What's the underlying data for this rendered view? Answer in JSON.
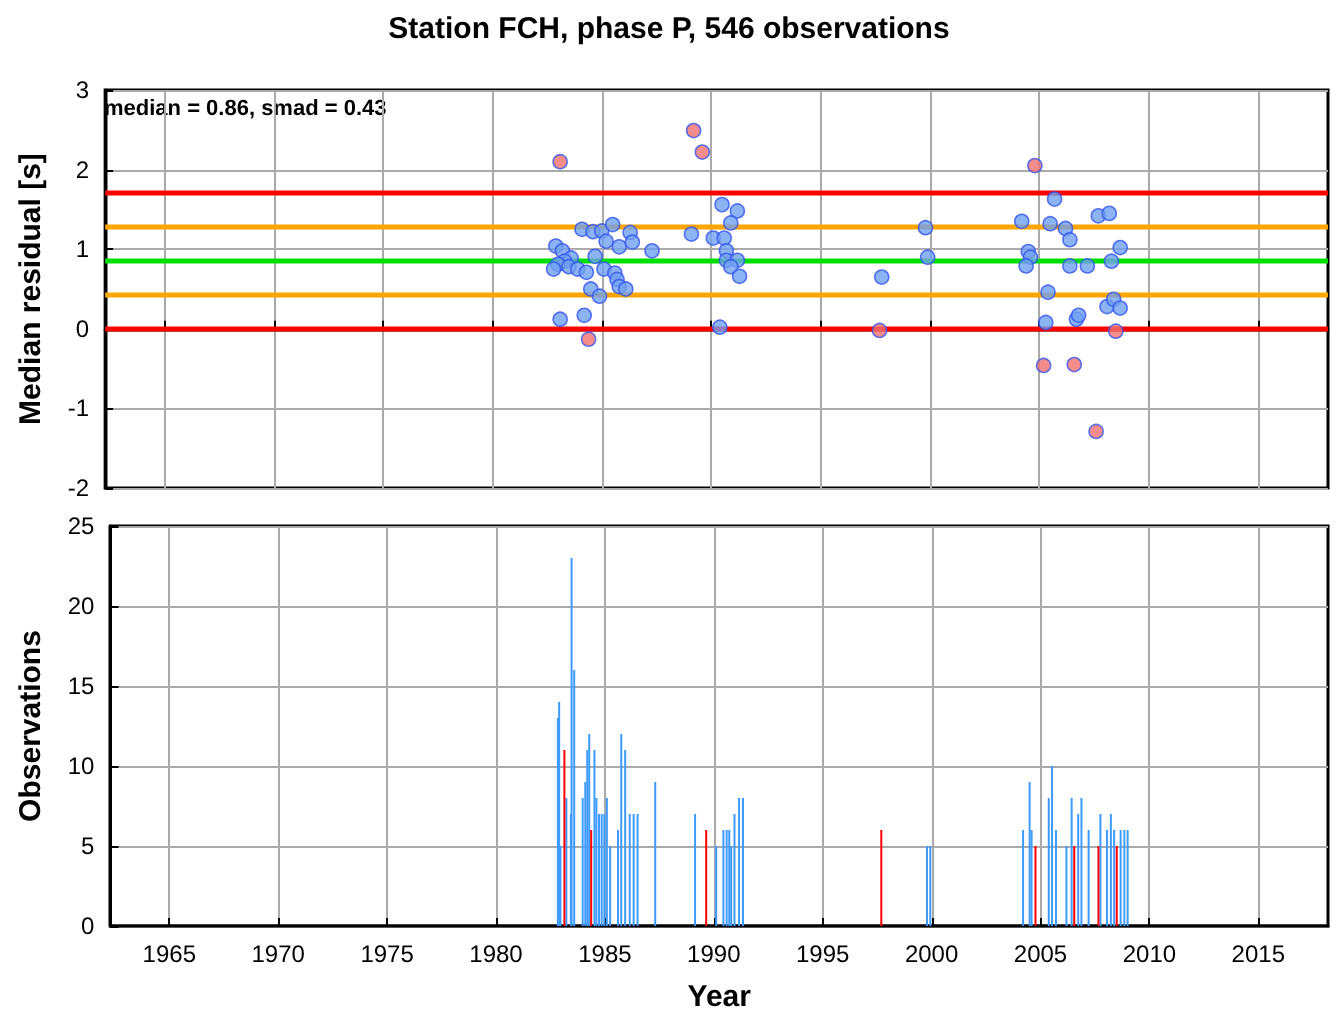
{
  "chart_data": [
    {
      "type": "scatter",
      "title": "Station FCH, phase P, 546 observations",
      "ylabel": "Median residual [s]",
      "marker": "circle",
      "grid": true,
      "tick_labels": "y",
      "xlim": [
        1962.3,
        2018.2
      ],
      "xticks": [
        1965,
        1970,
        1975,
        1980,
        1985,
        1990,
        1995,
        2000,
        2005,
        2010,
        2015
      ],
      "ylim": [
        -2,
        3
      ],
      "yticks": [
        -2,
        -1,
        0,
        1,
        2,
        3
      ],
      "annotations": [
        "median = 0.86, smad = 0.43"
      ],
      "ref_lines": [
        {
          "axis": "y",
          "value": 0,
          "color": "#ff0000"
        },
        {
          "axis": "y",
          "value": 1.72,
          "color": "#ff0000"
        },
        {
          "axis": "y",
          "value": 0.43,
          "color": "#ffa500"
        },
        {
          "axis": "y",
          "value": 1.29,
          "color": "#ffa500"
        },
        {
          "axis": "y",
          "value": 0.86,
          "color": "#00e000"
        }
      ],
      "series": [
        {
          "color": "#6fa0f0",
          "x": [
            1990.5,
            1991.2,
            1990.9,
            1989.1,
            1990.1,
            1990.6,
            1990.7,
            1990.7,
            1991.2,
            1990.9,
            1991.3,
            1990.4,
            1984.1,
            1984.6,
            1985.0,
            1985.5,
            1986.3,
            1985.2,
            1985.8,
            1986.4,
            1987.3,
            1982.9,
            1983.2,
            1984.7,
            1983.6,
            1983.3,
            1983.0,
            1982.8,
            1983.5,
            1983.9,
            1984.3,
            1985.1,
            1985.6,
            1985.7,
            1985.8,
            1986.1,
            1984.5,
            1984.9,
            1983.1,
            1984.2,
            1999.8,
            1999.9,
            1997.8,
            2005.7,
            2004.2,
            2005.5,
            2006.2,
            2006.4,
            2007.7,
            2008.2,
            2004.5,
            2004.6,
            2004.4,
            2006.4,
            2007.2,
            2008.3,
            2008.7,
            2005.4,
            2005.3,
            2006.7,
            2006.8,
            2008.1,
            2008.4,
            2008.7
          ],
          "values": [
            1.56,
            1.48,
            1.33,
            1.19,
            1.14,
            1.14,
            0.98,
            0.86,
            0.86,
            0.78,
            0.66,
            0.02,
            1.25,
            1.22,
            1.23,
            1.31,
            1.21,
            1.1,
            1.03,
            1.09,
            0.98,
            1.04,
            0.98,
            0.91,
            0.89,
            0.85,
            0.81,
            0.75,
            0.78,
            0.75,
            0.71,
            0.75,
            0.7,
            0.62,
            0.53,
            0.5,
            0.5,
            0.41,
            0.12,
            0.17,
            1.27,
            0.9,
            0.65,
            1.63,
            1.35,
            1.32,
            1.26,
            1.12,
            1.42,
            1.45,
            0.97,
            0.9,
            0.79,
            0.79,
            0.79,
            0.85,
            1.02,
            0.46,
            0.08,
            0.12,
            0.17,
            0.28,
            0.37,
            0.26
          ]
        },
        {
          "color": "#f07070",
          "x": [
            1983.1,
            1989.2,
            1989.6,
            1984.4,
            2004.8,
            1997.7,
            2005.2,
            2006.6,
            2007.6,
            2008.5
          ],
          "values": [
            2.1,
            2.49,
            2.22,
            -0.13,
            2.05,
            -0.02,
            -0.46,
            -0.45,
            -1.29,
            -0.03
          ]
        }
      ]
    },
    {
      "type": "bar",
      "xlabel": "Year",
      "ylabel": "Observations",
      "grid": true,
      "xlim": [
        1962.3,
        2018.2
      ],
      "xticks": [
        1965,
        1970,
        1975,
        1980,
        1985,
        1990,
        1995,
        2000,
        2005,
        2010,
        2015
      ],
      "ylim": [
        0,
        25
      ],
      "yticks": [
        0,
        5,
        10,
        15,
        20,
        25
      ],
      "series": [
        {
          "color": "#3d9bff",
          "x": [
            1982.84,
            1982.9,
            1982.96,
            1983.23,
            1983.44,
            1983.47,
            1983.59,
            1983.98,
            1984.1,
            1984.19,
            1984.28,
            1984.52,
            1984.61,
            1984.73,
            1984.85,
            1984.97,
            1985.09,
            1985.24,
            1985.6,
            1985.75,
            1985.93,
            1986.14,
            1986.32,
            1986.5,
            1987.31,
            1989.14,
            1990.11,
            1990.44,
            1990.59,
            1990.71,
            1990.8,
            1990.95,
            1991.16,
            1991.34,
            1999.79,
            1999.94,
            2004.2,
            2004.5,
            2004.59,
            2005.38,
            2005.53,
            2005.71,
            2006.19,
            2006.43,
            2006.73,
            2006.88,
            2007.21,
            2007.75,
            2008.05,
            2008.23,
            2008.38,
            2008.68,
            2008.85,
            2009.0
          ],
          "values": [
            13,
            14,
            5,
            8,
            7,
            23,
            16,
            8,
            9,
            11,
            12,
            11,
            8,
            7,
            7,
            7,
            8,
            5,
            6,
            12,
            11,
            7,
            7,
            7,
            9,
            7,
            5,
            6,
            6,
            6,
            5,
            7,
            8,
            8,
            5,
            5,
            6,
            9,
            6,
            8,
            10,
            6,
            5,
            8,
            7,
            8,
            6,
            7,
            6,
            7,
            6,
            6,
            6,
            6
          ]
        },
        {
          "color": "#ff0000",
          "x": [
            1983.14,
            1984.37,
            1989.65,
            1997.69,
            2004.77,
            2006.55,
            2007.66,
            2008.5
          ],
          "values": [
            11,
            6,
            6,
            6,
            5,
            5,
            5,
            5
          ]
        }
      ]
    }
  ]
}
